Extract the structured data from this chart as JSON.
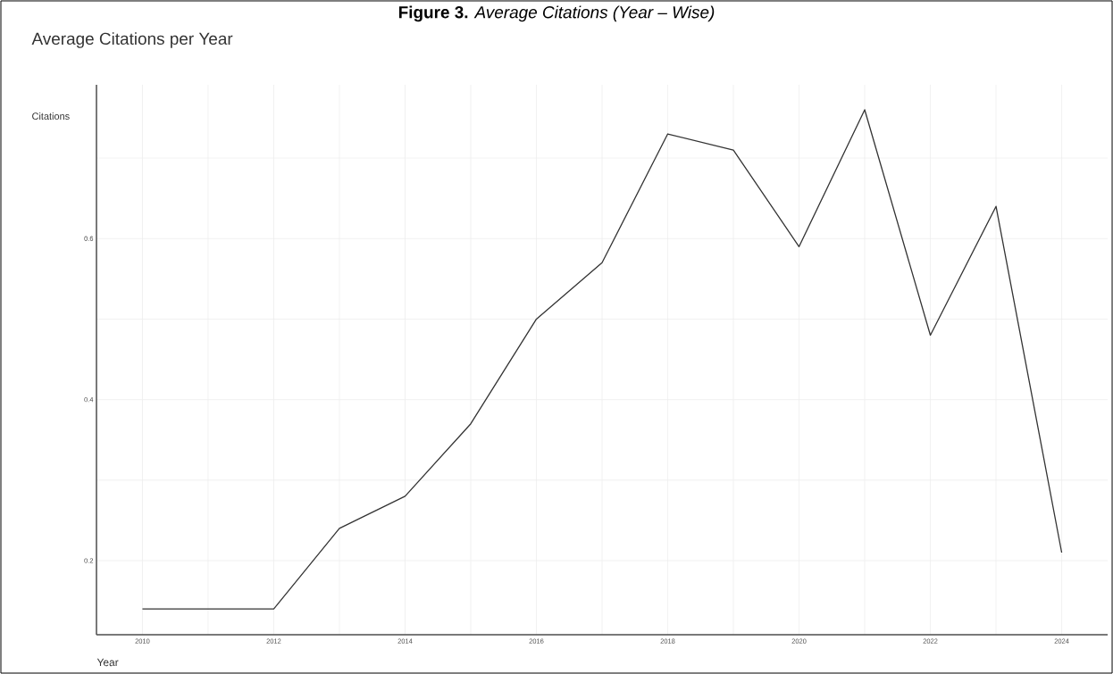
{
  "chart_data": {
    "type": "line",
    "title": "**Figure 3.** *Average Citations (Year – Wise)*",
    "subtitle": "Average Citations per Year",
    "xlabel": "Year",
    "ylabel": "Citations",
    "x": [
      2010,
      2011,
      2012,
      2013,
      2014,
      2015,
      2016,
      2017,
      2018,
      2019,
      2020,
      2021,
      2022,
      2023,
      2024
    ],
    "values": [
      0.14,
      0.14,
      0.14,
      0.24,
      0.28,
      0.37,
      0.5,
      0.57,
      0.73,
      0.71,
      0.59,
      0.76,
      0.48,
      0.64,
      0.21
    ],
    "color": "#333333",
    "xlim": [
      2009.3,
      2024.7
    ],
    "ylim": [
      0.108,
      0.791
    ],
    "xticks": [
      2010,
      {
        "value": 2011,
        "label": null
      },
      2012,
      {
        "value": 2013,
        "label": null
      },
      2014,
      {
        "value": 2015,
        "label": null
      },
      2016,
      {
        "value": 2017,
        "label": null
      },
      2018,
      {
        "value": 2019,
        "label": null
      },
      2020,
      {
        "value": 2021,
        "label": null
      },
      2022,
      {
        "value": 2023,
        "label": null
      },
      2024
    ],
    "yticks": [
      0.2,
      {
        "value": 0.3,
        "label": null
      },
      0.4,
      {
        "value": 0.5,
        "label": null
      },
      0.6,
      {
        "value": 0.7,
        "label": null
      }
    ],
    "grid": true,
    "marker": "none",
    "line_style": "solid"
  }
}
